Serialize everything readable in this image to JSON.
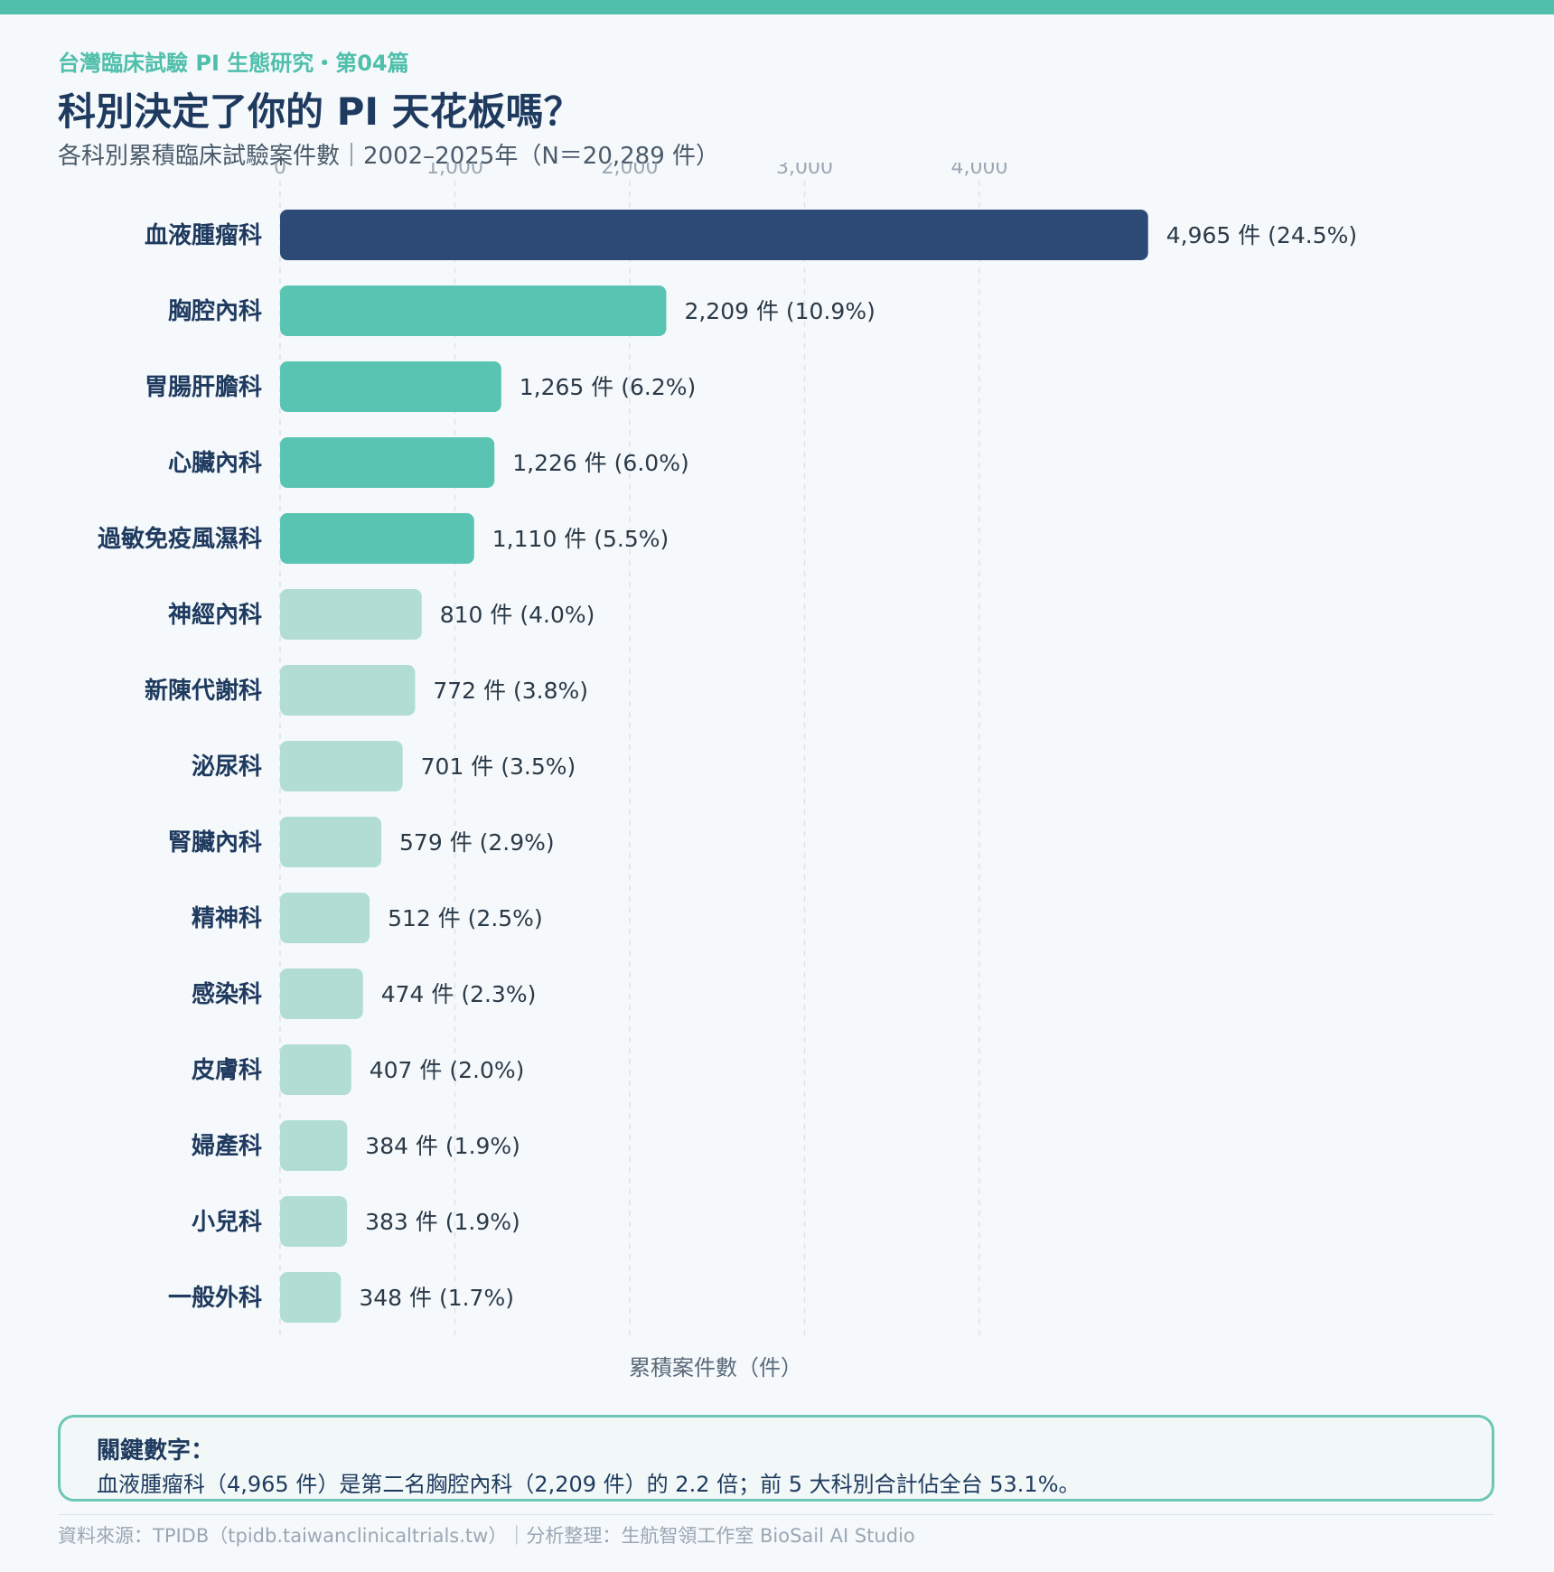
{
  "header": {
    "kicker": "台灣臨床試驗 PI 生態研究・第04篇",
    "title": "科別決定了你的 PI 天花板嗎？",
    "subtitle": "各科別累積臨床試驗案件數｜2002–2025年（N＝20,289 件）"
  },
  "colors": {
    "primary": "#2d4a77",
    "tier2": "#5ac4b2",
    "tier3": "#b1ddd4",
    "accent": "#4fbfab"
  },
  "chart_data": {
    "type": "bar",
    "orientation": "horizontal",
    "categories": [
      "血液腫瘤科",
      "胸腔內科",
      "胃腸肝膽科",
      "心臟內科",
      "過敏免疫風濕科",
      "神經內科",
      "新陳代謝科",
      "泌尿科",
      "腎臟內科",
      "精神科",
      "感染科",
      "皮膚科",
      "婦產科",
      "小兒科",
      "一般外科"
    ],
    "values": [
      4965,
      2209,
      1265,
      1226,
      1110,
      810,
      772,
      701,
      579,
      512,
      474,
      407,
      384,
      383,
      348
    ],
    "value_labels": [
      "4,965 件 (24.5%)",
      "2,209 件 (10.9%)",
      "1,265 件 (6.2%)",
      "1,226 件 (6.0%)",
      "1,110 件 (5.5%)",
      "810 件 (4.0%)",
      "772 件 (3.8%)",
      "701 件 (3.5%)",
      "579 件 (2.9%)",
      "512 件 (2.5%)",
      "474 件 (2.3%)",
      "407 件 (2.0%)",
      "384 件 (1.9%)",
      "383 件 (1.9%)",
      "348 件 (1.7%)"
    ],
    "xticks": [
      0,
      1000,
      2000,
      3000,
      4000
    ],
    "xtick_labels": [
      "0",
      "1,000",
      "2,000",
      "3,000",
      "4,000"
    ],
    "xlim": [
      0,
      5000
    ],
    "xlabel": "累積案件數（件）",
    "grid": true,
    "tiers": [
      1,
      2,
      2,
      2,
      2,
      3,
      3,
      3,
      3,
      3,
      3,
      3,
      3,
      3,
      3
    ]
  },
  "callout": {
    "title": "關鍵數字：",
    "text": "血液腫瘤科（4,965 件）是第二名胸腔內科（2,209 件）的 2.2 倍；前 5 大科別合計佔全台 53.1%。"
  },
  "footer": {
    "source": "資料來源：TPIDB（tpidb.taiwanclinicaltrials.tw）｜分析整理：生航智領工作室 BioSail AI Studio"
  }
}
